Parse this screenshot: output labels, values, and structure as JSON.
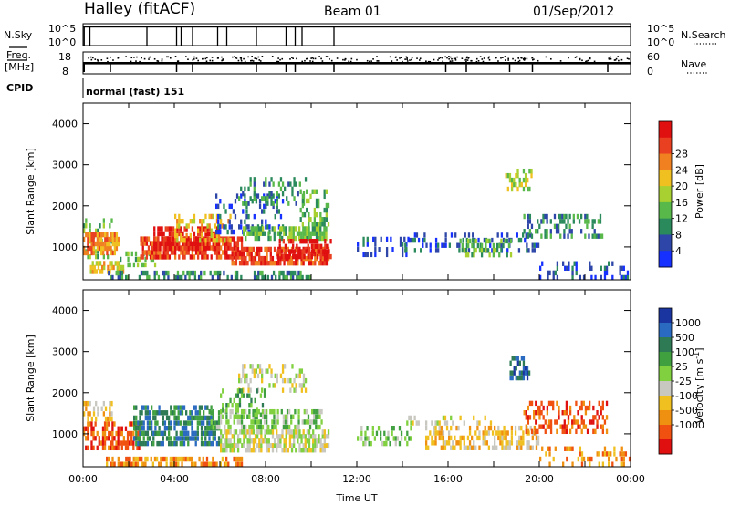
{
  "header": {
    "station": "Halley (fitACF)",
    "beam": "Beam 01",
    "date": "01/Sep/2012"
  },
  "nsky_panel": {
    "left_label": "N.Sky",
    "right_label": "N.Search",
    "tick_top_left": "10^5",
    "tick_bottom_left": "10^0",
    "tick_top_right": "10^5",
    "tick_bottom_right": "10^0",
    "line_style_right": "dotted"
  },
  "freq_panel": {
    "left_label_1": "Freq.",
    "left_label_2": "[MHz]",
    "right_label": "Nave",
    "tick_top_left": "18",
    "tick_bottom_left": "8",
    "tick_top_right": "60",
    "tick_bottom_right": "0"
  },
  "cpid_panel": {
    "label": "CPID",
    "program": "normal (fast) 151"
  },
  "chart_data": [
    {
      "type": "heatmap",
      "name": "Power",
      "ylabel": "Slant Range [km]",
      "ylim": [
        200,
        4500
      ],
      "xlim": [
        0,
        24
      ],
      "yticks": [
        "1000",
        "2000",
        "3000",
        "4000"
      ],
      "colorbar_label": "Power [dB]",
      "colorbar_ticks": [
        "4",
        "8",
        "12",
        "16",
        "20",
        "24",
        "28"
      ],
      "colorbar_colors": [
        "#1530ff",
        "#2d46a8",
        "#2a8a5c",
        "#58b84a",
        "#a8d030",
        "#f0c020",
        "#f08020",
        "#e84020",
        "#e01010"
      ],
      "regions": [
        {
          "x": [
            0,
            1.3
          ],
          "y": [
            700,
            1700
          ],
          "c": 3,
          "d": 0.35
        },
        {
          "x": [
            0,
            1.6
          ],
          "y": [
            800,
            1350
          ],
          "c": 6,
          "d": 0.75
        },
        {
          "x": [
            0.3,
            1.8
          ],
          "y": [
            350,
            650
          ],
          "c": 5,
          "d": 0.6
        },
        {
          "x": [
            1.6,
            3.2
          ],
          "y": [
            500,
            900
          ],
          "c": 3,
          "d": 0.45
        },
        {
          "x": [
            2.5,
            7
          ],
          "y": [
            700,
            1250
          ],
          "c": 7,
          "d": 0.75
        },
        {
          "x": [
            3,
            6
          ],
          "y": [
            900,
            1500
          ],
          "c": 8,
          "d": 0.7
        },
        {
          "x": [
            4,
            6.5
          ],
          "y": [
            1100,
            1800
          ],
          "c": 5,
          "d": 0.35
        },
        {
          "x": [
            5.8,
            8.8
          ],
          "y": [
            1300,
            2300
          ],
          "c": 1,
          "d": 0.3
        },
        {
          "x": [
            6.8,
            9.8
          ],
          "y": [
            2000,
            2700
          ],
          "c": 2,
          "d": 0.3
        },
        {
          "x": [
            7,
            10.7
          ],
          "y": [
            1150,
            1500
          ],
          "c": 3,
          "d": 0.7
        },
        {
          "x": [
            6.5,
            10.8
          ],
          "y": [
            550,
            1000
          ],
          "c": 7,
          "d": 0.75
        },
        {
          "x": [
            8.5,
            10.9
          ],
          "y": [
            700,
            1200
          ],
          "c": 8,
          "d": 0.65
        },
        {
          "x": [
            1,
            10
          ],
          "y": [
            200,
            420
          ],
          "c": 2,
          "d": 0.45
        },
        {
          "x": [
            9.5,
            10.8
          ],
          "y": [
            1500,
            2400
          ],
          "c": 3,
          "d": 0.35
        },
        {
          "x": [
            12,
            14.3
          ],
          "y": [
            750,
            1250
          ],
          "c": 1,
          "d": 0.3
        },
        {
          "x": [
            14,
            20
          ],
          "y": [
            850,
            1350
          ],
          "c": 1,
          "d": 0.25
        },
        {
          "x": [
            16.5,
            18.8
          ],
          "y": [
            750,
            1200
          ],
          "c": 3,
          "d": 0.45
        },
        {
          "x": [
            18.5,
            19.7
          ],
          "y": [
            2350,
            2900
          ],
          "c": 4,
          "d": 0.45
        },
        {
          "x": [
            19.3,
            22.8
          ],
          "y": [
            1200,
            1800
          ],
          "c": 2,
          "d": 0.4
        },
        {
          "x": [
            20,
            24
          ],
          "y": [
            200,
            650
          ],
          "c": 1,
          "d": 0.25
        }
      ]
    },
    {
      "type": "heatmap",
      "name": "Velocity",
      "ylabel": "Slant Range [km]",
      "xlabel": "Time UT",
      "ylim": [
        200,
        4500
      ],
      "xlim": [
        0,
        24
      ],
      "yticks": [
        "1000",
        "2000",
        "3000",
        "4000"
      ],
      "xticks": [
        "00:00",
        "04:00",
        "08:00",
        "12:00",
        "16:00",
        "20:00",
        "00:00"
      ],
      "colorbar_label": "Velocity [m s",
      "colorbar_label_sup": "-1",
      "colorbar_label_end": "]",
      "colorbar_ticks": [
        "1000",
        "500",
        "100",
        "25",
        "-25",
        "-100",
        "-500",
        "-1000"
      ],
      "colorbar_colors": [
        "#1a35a0",
        "#2a6ac0",
        "#2d7a55",
        "#40a040",
        "#80d040",
        "#c8c8c0",
        "#f0c020",
        "#f09010",
        "#f05010",
        "#e01010"
      ],
      "regions": [
        {
          "x": [
            0,
            2.5
          ],
          "y": [
            600,
            1300
          ],
          "c": 8,
          "d": 0.6
        },
        {
          "x": [
            0,
            1.3
          ],
          "y": [
            1300,
            1800
          ],
          "c": 6,
          "d": 0.35
        },
        {
          "x": [
            2.2,
            6
          ],
          "y": [
            700,
            1700
          ],
          "c": 2,
          "d": 0.7
        },
        {
          "x": [
            1,
            7
          ],
          "y": [
            200,
            450
          ],
          "c": 7,
          "d": 0.6
        },
        {
          "x": [
            5.5,
            10.5
          ],
          "y": [
            1100,
            1600
          ],
          "c": 4,
          "d": 0.55
        },
        {
          "x": [
            6,
            10.8
          ],
          "y": [
            550,
            1100
          ],
          "c": 5,
          "d": 0.65
        },
        {
          "x": [
            6.8,
            9.8
          ],
          "y": [
            2000,
            2700
          ],
          "c": 5,
          "d": 0.4
        },
        {
          "x": [
            6,
            8
          ],
          "y": [
            1400,
            2100
          ],
          "c": 3,
          "d": 0.3
        },
        {
          "x": [
            12,
            14.5
          ],
          "y": [
            700,
            1200
          ],
          "c": 4,
          "d": 0.35
        },
        {
          "x": [
            14,
            18
          ],
          "y": [
            1200,
            1450
          ],
          "c": 5,
          "d": 0.3
        },
        {
          "x": [
            15,
            20
          ],
          "y": [
            600,
            1200
          ],
          "c": 6,
          "d": 0.5
        },
        {
          "x": [
            18.7,
            19.6
          ],
          "y": [
            2300,
            2900
          ],
          "c": 1,
          "d": 0.45
        },
        {
          "x": [
            19.3,
            23
          ],
          "y": [
            1000,
            1800
          ],
          "c": 8,
          "d": 0.4
        },
        {
          "x": [
            20,
            24
          ],
          "y": [
            200,
            700
          ],
          "c": 7,
          "d": 0.25
        }
      ]
    }
  ]
}
